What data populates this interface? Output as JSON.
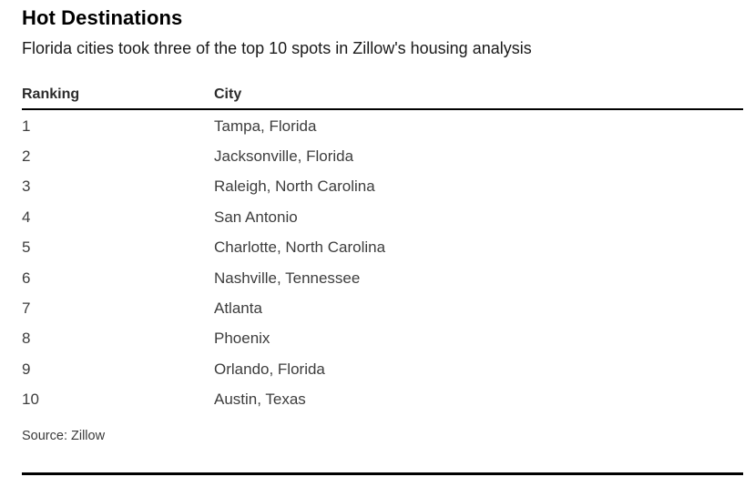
{
  "chart_data": {
    "type": "table",
    "title": "Hot Destinations",
    "subtitle": "Florida cities took three of the top 10 spots in Zillow's housing analysis",
    "columns": [
      "Ranking",
      "City"
    ],
    "rows": [
      [
        "1",
        "Tampa, Florida"
      ],
      [
        "2",
        "Jacksonville, Florida"
      ],
      [
        "3",
        "Raleigh, North Carolina"
      ],
      [
        "4",
        "San Antonio"
      ],
      [
        "5",
        "Charlotte, North Carolina"
      ],
      [
        "6",
        "Nashville, Tennessee"
      ],
      [
        "7",
        "Atlanta"
      ],
      [
        "8",
        "Phoenix"
      ],
      [
        "9",
        "Orlando, Florida"
      ],
      [
        "10",
        "Austin, Texas"
      ]
    ],
    "source": "Source: Zillow",
    "layout": {
      "grid": "off",
      "row_separators": "none",
      "header_rule": "thick-black",
      "footer_rule": "thick-black"
    }
  },
  "colors": {
    "background": "#ffffff",
    "title_text": "#000000",
    "subtitle_text": "#1a1a1a",
    "header_text": "#2b2b2b",
    "row_text": "#3d3d3d",
    "rule": "#000000"
  }
}
